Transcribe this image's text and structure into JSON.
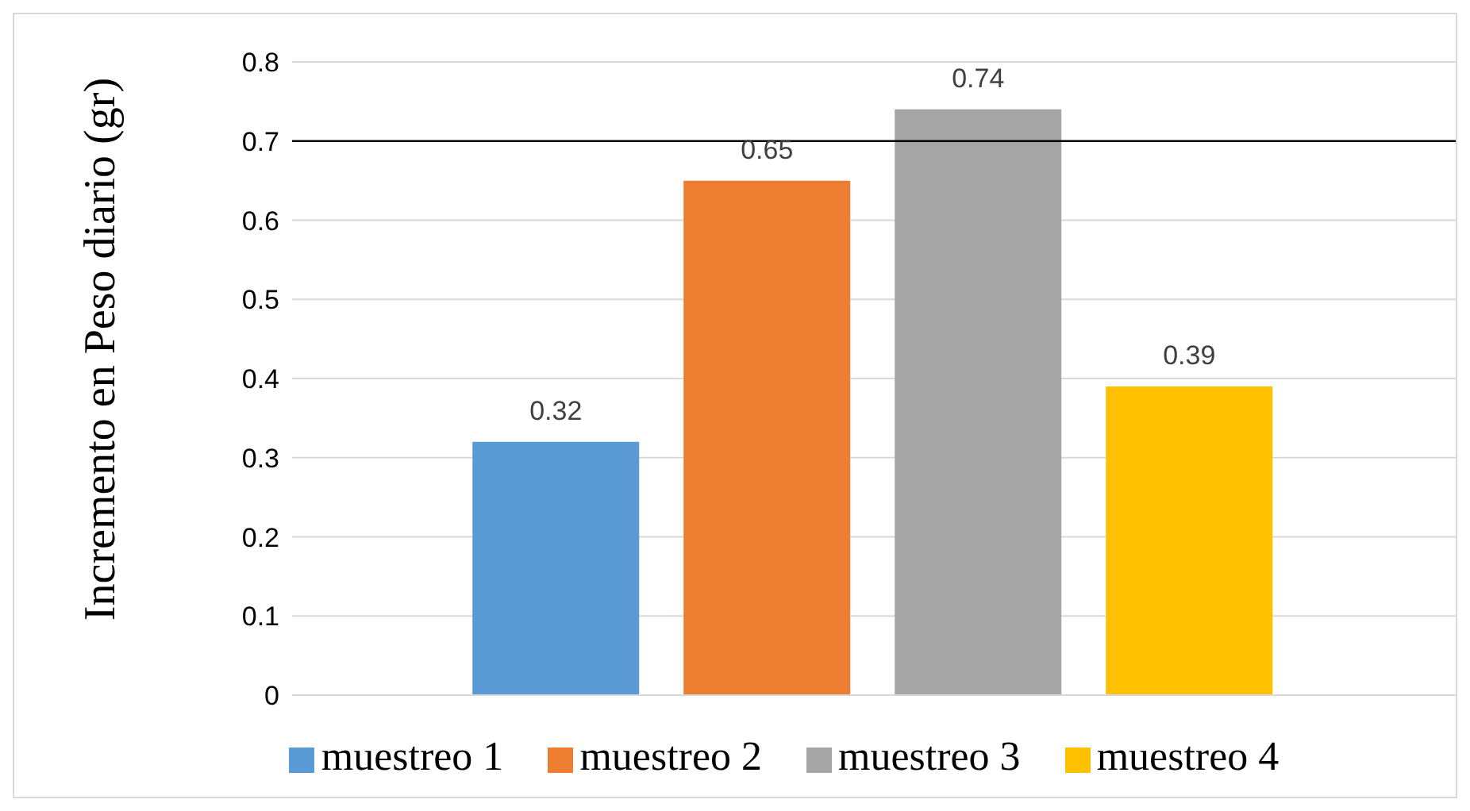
{
  "chart_data": {
    "type": "bar",
    "ylabel": "Incremento en Peso diario (gr)",
    "categories": [
      null
    ],
    "series": [
      {
        "name": "muestreo 1",
        "color": "#5b9bd5",
        "values": [
          0.32
        ]
      },
      {
        "name": "muestreo 2",
        "color": "#ed7d31",
        "values": [
          0.65
        ]
      },
      {
        "name": "muestreo 3",
        "color": "#a5a5a5",
        "values": [
          0.74
        ]
      },
      {
        "name": "muestreo 4",
        "color": "#ffc000",
        "values": [
          0.39
        ]
      }
    ],
    "ylim": [
      0,
      0.8
    ],
    "yticks": [
      0,
      0.1,
      0.2,
      0.3,
      0.4,
      0.5,
      0.6,
      0.7,
      0.8
    ],
    "grid": "y",
    "legend": "bottom",
    "data_labels": true,
    "ref_lines": [
      {
        "axis": "y",
        "value": 0.7,
        "color": "#000000"
      }
    ]
  }
}
